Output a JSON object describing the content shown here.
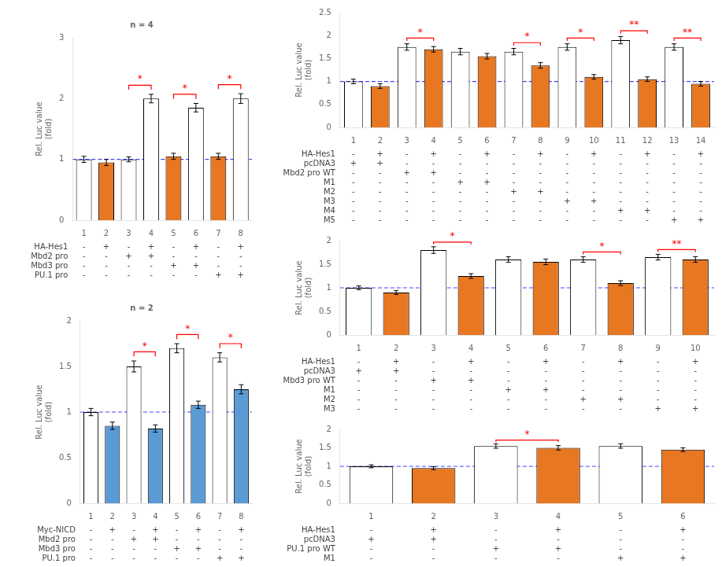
{
  "chart_data": [
    {
      "type": "bar",
      "title": "n = 4",
      "categories": [
        "1",
        "2",
        "3",
        "4",
        "5",
        "6",
        "7",
        "8"
      ],
      "values": [
        1.0,
        0.95,
        1.0,
        2.0,
        1.05,
        1.85,
        1.05,
        2.0
      ],
      "errors": [
        0.05,
        0.05,
        0.04,
        0.07,
        0.05,
        0.07,
        0.05,
        0.08
      ],
      "colors": [
        "white",
        "#E87722",
        "white",
        "white",
        "#E87722",
        "white",
        "#E87722",
        "white"
      ],
      "ylabel": "Rel. Luc value\n(fold)",
      "ylim": [
        0,
        3
      ],
      "yticks": [
        0,
        1,
        2,
        3
      ],
      "grid": false,
      "reference_line": {
        "value": 1.0,
        "color": "#4444FF",
        "line_style": "dashed"
      },
      "annotations": [
        {
          "from": "3",
          "to": "4",
          "text": "*",
          "color": "red"
        },
        {
          "from": "5",
          "to": "6",
          "text": "*",
          "color": "red"
        },
        {
          "from": "7",
          "to": "8",
          "text": "*",
          "color": "red"
        }
      ],
      "table": [
        {
          "name": "HA-Hes1",
          "cells": [
            "-",
            "+",
            "-",
            "+",
            "-",
            "+",
            "-",
            "+"
          ]
        },
        {
          "name": "Mbd2 pro",
          "cells": [
            "-",
            "-",
            "+",
            "+",
            "-",
            "-",
            "-",
            "-"
          ]
        },
        {
          "name": "Mbd3 pro",
          "cells": [
            "-",
            "-",
            "-",
            "-",
            "+",
            "+",
            "-",
            "-"
          ]
        },
        {
          "name": "PU.1 pro",
          "cells": [
            "-",
            "-",
            "-",
            "-",
            "-",
            "-",
            "+",
            "+"
          ]
        }
      ]
    },
    {
      "type": "bar",
      "title": "n = 2",
      "categories": [
        "1",
        "2",
        "3",
        "4",
        "5",
        "6",
        "7",
        "8"
      ],
      "values": [
        1.0,
        0.85,
        1.5,
        0.82,
        1.7,
        1.08,
        1.6,
        1.25
      ],
      "errors": [
        0.04,
        0.04,
        0.06,
        0.04,
        0.05,
        0.04,
        0.05,
        0.05
      ],
      "colors": [
        "white",
        "#5B9BD5",
        "white",
        "#5B9BD5",
        "white",
        "#5B9BD5",
        "white",
        "#5B9BD5"
      ],
      "ylabel": "Rel. Luc value\n(fold)",
      "ylim": [
        0,
        2
      ],
      "yticks": [
        0,
        0.5,
        1,
        1.5,
        2
      ],
      "grid": false,
      "reference_line": {
        "value": 1.0,
        "color": "#4444FF",
        "line_style": "dashed"
      },
      "annotations": [
        {
          "from": "3",
          "to": "4",
          "text": "*",
          "color": "red"
        },
        {
          "from": "5",
          "to": "6",
          "text": "*",
          "color": "red"
        },
        {
          "from": "7",
          "to": "8",
          "text": "*",
          "color": "red"
        }
      ],
      "table": [
        {
          "name": "Myc-NICD",
          "cells": [
            "-",
            "+",
            "-",
            "+",
            "-",
            "+",
            "-",
            "+"
          ]
        },
        {
          "name": "Mbd2 pro",
          "cells": [
            "-",
            "-",
            "+",
            "+",
            "-",
            "-",
            "-",
            "-"
          ]
        },
        {
          "name": "Mbd3 pro",
          "cells": [
            "-",
            "-",
            "-",
            "-",
            "+",
            "+",
            "-",
            "-"
          ]
        },
        {
          "name": "PU.1 pro",
          "cells": [
            "-",
            "-",
            "-",
            "-",
            "-",
            "-",
            "+",
            "+"
          ]
        }
      ]
    },
    {
      "type": "bar",
      "categories": [
        "1",
        "2",
        "3",
        "4",
        "5",
        "6",
        "7",
        "8",
        "9",
        "10",
        "11",
        "12",
        "13",
        "14"
      ],
      "values": [
        1.0,
        0.9,
        1.75,
        1.7,
        1.65,
        1.55,
        1.65,
        1.35,
        1.75,
        1.1,
        1.9,
        1.05,
        1.75,
        0.95
      ],
      "errors": [
        0.05,
        0.05,
        0.07,
        0.06,
        0.07,
        0.06,
        0.07,
        0.06,
        0.07,
        0.05,
        0.08,
        0.05,
        0.07,
        0.05
      ],
      "colors": [
        "white",
        "#E87722",
        "white",
        "#E87722",
        "white",
        "#E87722",
        "white",
        "#E87722",
        "white",
        "#E87722",
        "white",
        "#E87722",
        "white",
        "#E87722"
      ],
      "ylabel": "Rel. Luc value\n(fold)",
      "ylim": [
        0,
        2.5
      ],
      "yticks": [
        0,
        0.5,
        1,
        1.5,
        2,
        2.5
      ],
      "grid": false,
      "reference_line": {
        "value": 1.0,
        "color": "#4444FF",
        "line_style": "dashed"
      },
      "annotations": [
        {
          "from": "3",
          "to": "4",
          "text": "*",
          "color": "red"
        },
        {
          "from": "7",
          "to": "8",
          "text": "*",
          "color": "red"
        },
        {
          "from": "9",
          "to": "10",
          "text": "*",
          "color": "red"
        },
        {
          "from": "11",
          "to": "12",
          "text": "**",
          "color": "red"
        },
        {
          "from": "13",
          "to": "14",
          "text": "**",
          "color": "red"
        }
      ],
      "table": [
        {
          "name": "HA-Hes1",
          "cells": [
            "-",
            "+",
            "-",
            "+",
            "-",
            "+",
            "-",
            "+",
            "-",
            "+",
            "-",
            "+",
            "-",
            "+"
          ]
        },
        {
          "name": "pcDNA3",
          "cells": [
            "+",
            "+",
            "-",
            "-",
            "-",
            "-",
            "-",
            "-",
            "-",
            "-",
            "-",
            "-",
            "-",
            "-"
          ]
        },
        {
          "name": "Mbd2 pro WT",
          "cells": [
            "-",
            "-",
            "+",
            "+",
            "-",
            "-",
            "-",
            "-",
            "-",
            "-",
            "-",
            "-",
            "-",
            "-"
          ]
        },
        {
          "name": "M1",
          "cells": [
            "-",
            "-",
            "-",
            "-",
            "+",
            "+",
            "-",
            "-",
            "-",
            "-",
            "-",
            "-",
            "-",
            "-"
          ]
        },
        {
          "name": "M2",
          "cells": [
            "-",
            "-",
            "-",
            "-",
            "-",
            "-",
            "+",
            "+",
            "-",
            "-",
            "-",
            "-",
            "-",
            "-"
          ]
        },
        {
          "name": "M3",
          "cells": [
            "-",
            "-",
            "-",
            "-",
            "-",
            "-",
            "-",
            "-",
            "+",
            "+",
            "-",
            "-",
            "-",
            "-"
          ]
        },
        {
          "name": "M4",
          "cells": [
            "-",
            "-",
            "-",
            "-",
            "-",
            "-",
            "-",
            "-",
            "-",
            "-",
            "+",
            "+",
            "-",
            "-"
          ]
        },
        {
          "name": "M5",
          "cells": [
            "-",
            "-",
            "-",
            "-",
            "-",
            "-",
            "-",
            "-",
            "-",
            "-",
            "-",
            "-",
            "+",
            "+"
          ]
        }
      ]
    },
    {
      "type": "bar",
      "categories": [
        "1",
        "2",
        "3",
        "4",
        "5",
        "6",
        "7",
        "8",
        "9",
        "10"
      ],
      "values": [
        1.0,
        0.9,
        1.8,
        1.25,
        1.6,
        1.55,
        1.6,
        1.1,
        1.65,
        1.6
      ],
      "errors": [
        0.04,
        0.04,
        0.07,
        0.05,
        0.06,
        0.06,
        0.06,
        0.05,
        0.06,
        0.06
      ],
      "colors": [
        "white",
        "#E87722",
        "white",
        "#E87722",
        "white",
        "#E87722",
        "white",
        "#E87722",
        "white",
        "#E87722"
      ],
      "ylabel": "Rel. Luc value\n(fold)",
      "ylim": [
        0,
        2
      ],
      "yticks": [
        0,
        0.5,
        1,
        1.5,
        2
      ],
      "grid": false,
      "reference_line": {
        "value": 1.0,
        "color": "#4444FF",
        "line_style": "dashed"
      },
      "annotations": [
        {
          "from": "3",
          "to": "4",
          "text": "*",
          "color": "red"
        },
        {
          "from": "7",
          "to": "8",
          "text": "*",
          "color": "red"
        },
        {
          "from": "9",
          "to": "10",
          "text": "**",
          "color": "red"
        }
      ],
      "table": [
        {
          "name": "HA-Hes1",
          "cells": [
            "-",
            "+",
            "-",
            "+",
            "-",
            "+",
            "-",
            "+",
            "-",
            "+"
          ]
        },
        {
          "name": "pcDNA3",
          "cells": [
            "+",
            "+",
            "-",
            "-",
            "-",
            "-",
            "-",
            "-",
            "-",
            "-"
          ]
        },
        {
          "name": "Mbd3 pro WT",
          "cells": [
            "-",
            "-",
            "+",
            "+",
            "-",
            "-",
            "-",
            "-",
            "-",
            "-"
          ]
        },
        {
          "name": "M1",
          "cells": [
            "-",
            "-",
            "-",
            "-",
            "+",
            "+",
            "-",
            "-",
            "-",
            "-"
          ]
        },
        {
          "name": "M2",
          "cells": [
            "-",
            "-",
            "-",
            "-",
            "-",
            "-",
            "+",
            "+",
            "-",
            "-"
          ]
        },
        {
          "name": "M3",
          "cells": [
            "-",
            "-",
            "-",
            "-",
            "-",
            "-",
            "-",
            "-",
            "+",
            "+"
          ]
        }
      ]
    },
    {
      "type": "bar",
      "categories": [
        "1",
        "2",
        "3",
        "4",
        "5",
        "6"
      ],
      "values": [
        1.0,
        0.95,
        1.55,
        1.5,
        1.55,
        1.45
      ],
      "errors": [
        0.04,
        0.04,
        0.06,
        0.06,
        0.06,
        0.05
      ],
      "colors": [
        "white",
        "#E87722",
        "white",
        "#E87722",
        "white",
        "#E87722"
      ],
      "ylabel": "Rel. Luc value\n(fold)",
      "ylim": [
        0,
        2
      ],
      "yticks": [
        0,
        0.5,
        1,
        1.5,
        2
      ],
      "grid": false,
      "reference_line": {
        "value": 1.0,
        "color": "#4444FF",
        "line_style": "dashed"
      },
      "annotations": [
        {
          "from": "3",
          "to": "4",
          "text": "*",
          "color": "red"
        }
      ],
      "table": [
        {
          "name": "HA-Hes1",
          "cells": [
            "-",
            "+",
            "-",
            "+",
            "-",
            "+"
          ]
        },
        {
          "name": "pcDNA3",
          "cells": [
            "+",
            "+",
            "-",
            "-",
            "-",
            "-"
          ]
        },
        {
          "name": "PU.1 pro WT",
          "cells": [
            "-",
            "-",
            "+",
            "+",
            "-",
            "-"
          ]
        },
        {
          "name": "M1",
          "cells": [
            "-",
            "-",
            "-",
            "-",
            "+",
            "+"
          ]
        }
      ]
    }
  ]
}
